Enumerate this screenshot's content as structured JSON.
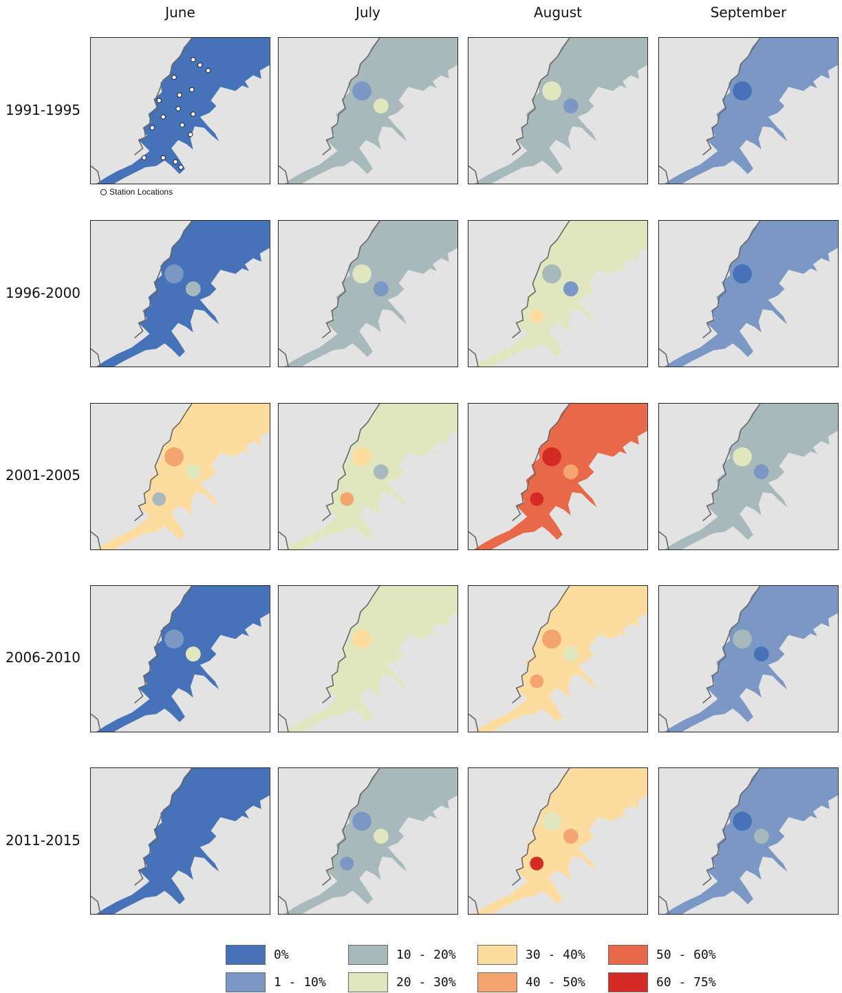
{
  "columns": [
    "June",
    "July",
    "August",
    "September"
  ],
  "rows": [
    "1991-1995",
    "1996-2000",
    "2001-2005",
    "2006-2010",
    "2011-2015"
  ],
  "station_note": "Station Locations",
  "legend": [
    {
      "label": "0%",
      "color": "#4672b8"
    },
    {
      "label": "1 - 10%",
      "color": "#7b97c3"
    },
    {
      "label": "10 - 20%",
      "color": "#a8b9bb"
    },
    {
      "label": "20 - 30%",
      "color": "#e0e6bd"
    },
    {
      "label": "30 - 40%",
      "color": "#fddd9f"
    },
    {
      "label": "40 - 50%",
      "color": "#f3a46f"
    },
    {
      "label": "50 - 60%",
      "color": "#e8694a"
    },
    {
      "label": "60 - 75%",
      "color": "#d42b26"
    }
  ],
  "map_background": "#e3e3e3",
  "map_classes": [
    [
      {
        "base": 0,
        "spots": []
      },
      {
        "base": 2,
        "spots": [
          1,
          3
        ]
      },
      {
        "base": 2,
        "spots": [
          3,
          1
        ]
      },
      {
        "base": 1,
        "spots": [
          0
        ]
      }
    ],
    [
      {
        "base": 0,
        "spots": [
          1,
          2
        ]
      },
      {
        "base": 2,
        "spots": [
          3,
          1
        ]
      },
      {
        "base": 3,
        "spots": [
          2,
          1,
          4
        ]
      },
      {
        "base": 1,
        "spots": [
          0
        ]
      }
    ],
    [
      {
        "base": 4,
        "spots": [
          5,
          3,
          2
        ]
      },
      {
        "base": 3,
        "spots": [
          4,
          2,
          5
        ]
      },
      {
        "base": 6,
        "spots": [
          7,
          5,
          7
        ]
      },
      {
        "base": 2,
        "spots": [
          3,
          1
        ]
      }
    ],
    [
      {
        "base": 0,
        "spots": [
          1,
          3
        ]
      },
      {
        "base": 3,
        "spots": [
          4,
          3
        ]
      },
      {
        "base": 4,
        "spots": [
          5,
          3,
          5
        ]
      },
      {
        "base": 1,
        "spots": [
          2,
          0
        ]
      }
    ],
    [
      {
        "base": 0,
        "spots": []
      },
      {
        "base": 2,
        "spots": [
          1,
          3,
          1
        ]
      },
      {
        "base": 4,
        "spots": [
          3,
          5,
          7
        ]
      },
      {
        "base": 1,
        "spots": [
          0,
          2
        ]
      }
    ]
  ]
}
